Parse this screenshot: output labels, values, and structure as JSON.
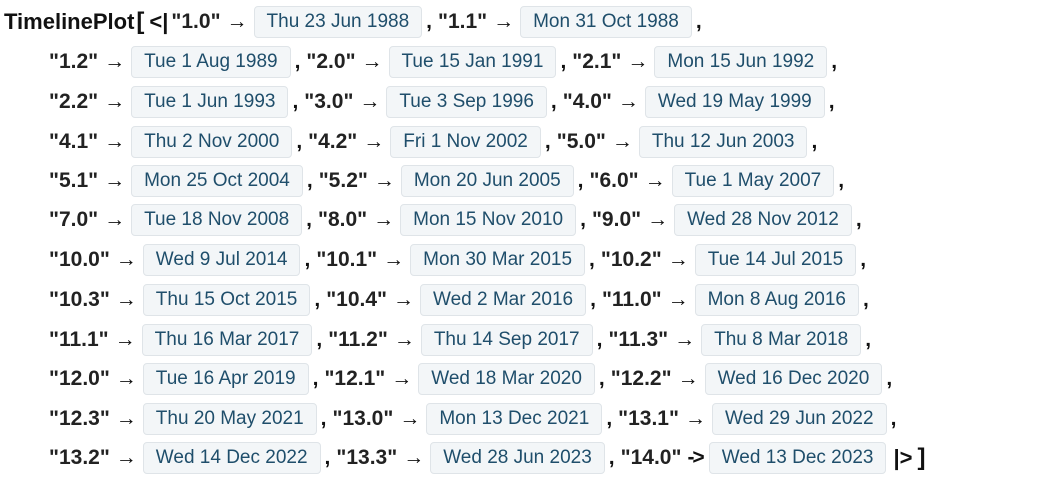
{
  "head": "TimelinePlot",
  "open_bracket": "[",
  "close_bracket": "]",
  "assoc_open": "<|",
  "assoc_close": "|>",
  "comma": ",",
  "arrow": "→",
  "arrow_ascii": "->",
  "entries": [
    {
      "key": "\"1.0\"",
      "date": "Thu 23 Jun 1988"
    },
    {
      "key": "\"1.1\"",
      "date": "Mon 31 Oct 1988"
    },
    {
      "key": "\"1.2\"",
      "date": "Tue 1 Aug 1989"
    },
    {
      "key": "\"2.0\"",
      "date": "Tue 15 Jan 1991"
    },
    {
      "key": "\"2.1\"",
      "date": "Mon 15 Jun 1992"
    },
    {
      "key": "\"2.2\"",
      "date": "Tue 1 Jun 1993"
    },
    {
      "key": "\"3.0\"",
      "date": "Tue 3 Sep 1996"
    },
    {
      "key": "\"4.0\"",
      "date": "Wed 19 May 1999"
    },
    {
      "key": "\"4.1\"",
      "date": "Thu 2 Nov 2000"
    },
    {
      "key": "\"4.2\"",
      "date": "Fri 1 Nov 2002"
    },
    {
      "key": "\"5.0\"",
      "date": "Thu 12 Jun 2003"
    },
    {
      "key": "\"5.1\"",
      "date": "Mon 25 Oct 2004"
    },
    {
      "key": "\"5.2\"",
      "date": "Mon 20 Jun 2005"
    },
    {
      "key": "\"6.0\"",
      "date": "Tue 1 May 2007"
    },
    {
      "key": "\"7.0\"",
      "date": "Tue 18 Nov 2008"
    },
    {
      "key": "\"8.0\"",
      "date": "Mon 15 Nov 2010"
    },
    {
      "key": "\"9.0\"",
      "date": "Wed 28 Nov 2012"
    },
    {
      "key": "\"10.0\"",
      "date": "Wed 9 Jul 2014"
    },
    {
      "key": "\"10.1\"",
      "date": "Mon 30 Mar 2015"
    },
    {
      "key": "\"10.2\"",
      "date": "Tue 14 Jul 2015"
    },
    {
      "key": "\"10.3\"",
      "date": "Thu 15 Oct 2015"
    },
    {
      "key": "\"10.4\"",
      "date": "Wed 2 Mar 2016"
    },
    {
      "key": "\"11.0\"",
      "date": "Mon 8 Aug 2016"
    },
    {
      "key": "\"11.1\"",
      "date": "Thu 16 Mar 2017"
    },
    {
      "key": "\"11.2\"",
      "date": "Thu 14 Sep 2017"
    },
    {
      "key": "\"11.3\"",
      "date": "Thu 8 Mar 2018"
    },
    {
      "key": "\"12.0\"",
      "date": "Tue 16 Apr 2019"
    },
    {
      "key": "\"12.1\"",
      "date": "Wed 18 Mar 2020"
    },
    {
      "key": "\"12.2\"",
      "date": "Wed 16 Dec 2020"
    },
    {
      "key": "\"12.3\"",
      "date": "Thu 20 May 2021"
    },
    {
      "key": "\"13.0\"",
      "date": "Mon 13 Dec 2021"
    },
    {
      "key": "\"13.1\"",
      "date": "Wed 29 Jun 2022"
    },
    {
      "key": "\"13.2\"",
      "date": "Wed 14 Dec 2022"
    },
    {
      "key": "\"13.3\"",
      "date": "Wed 28 Jun 2023"
    },
    {
      "key": "\"14.0\"",
      "date": "Wed 13 Dec 2023"
    }
  ]
}
